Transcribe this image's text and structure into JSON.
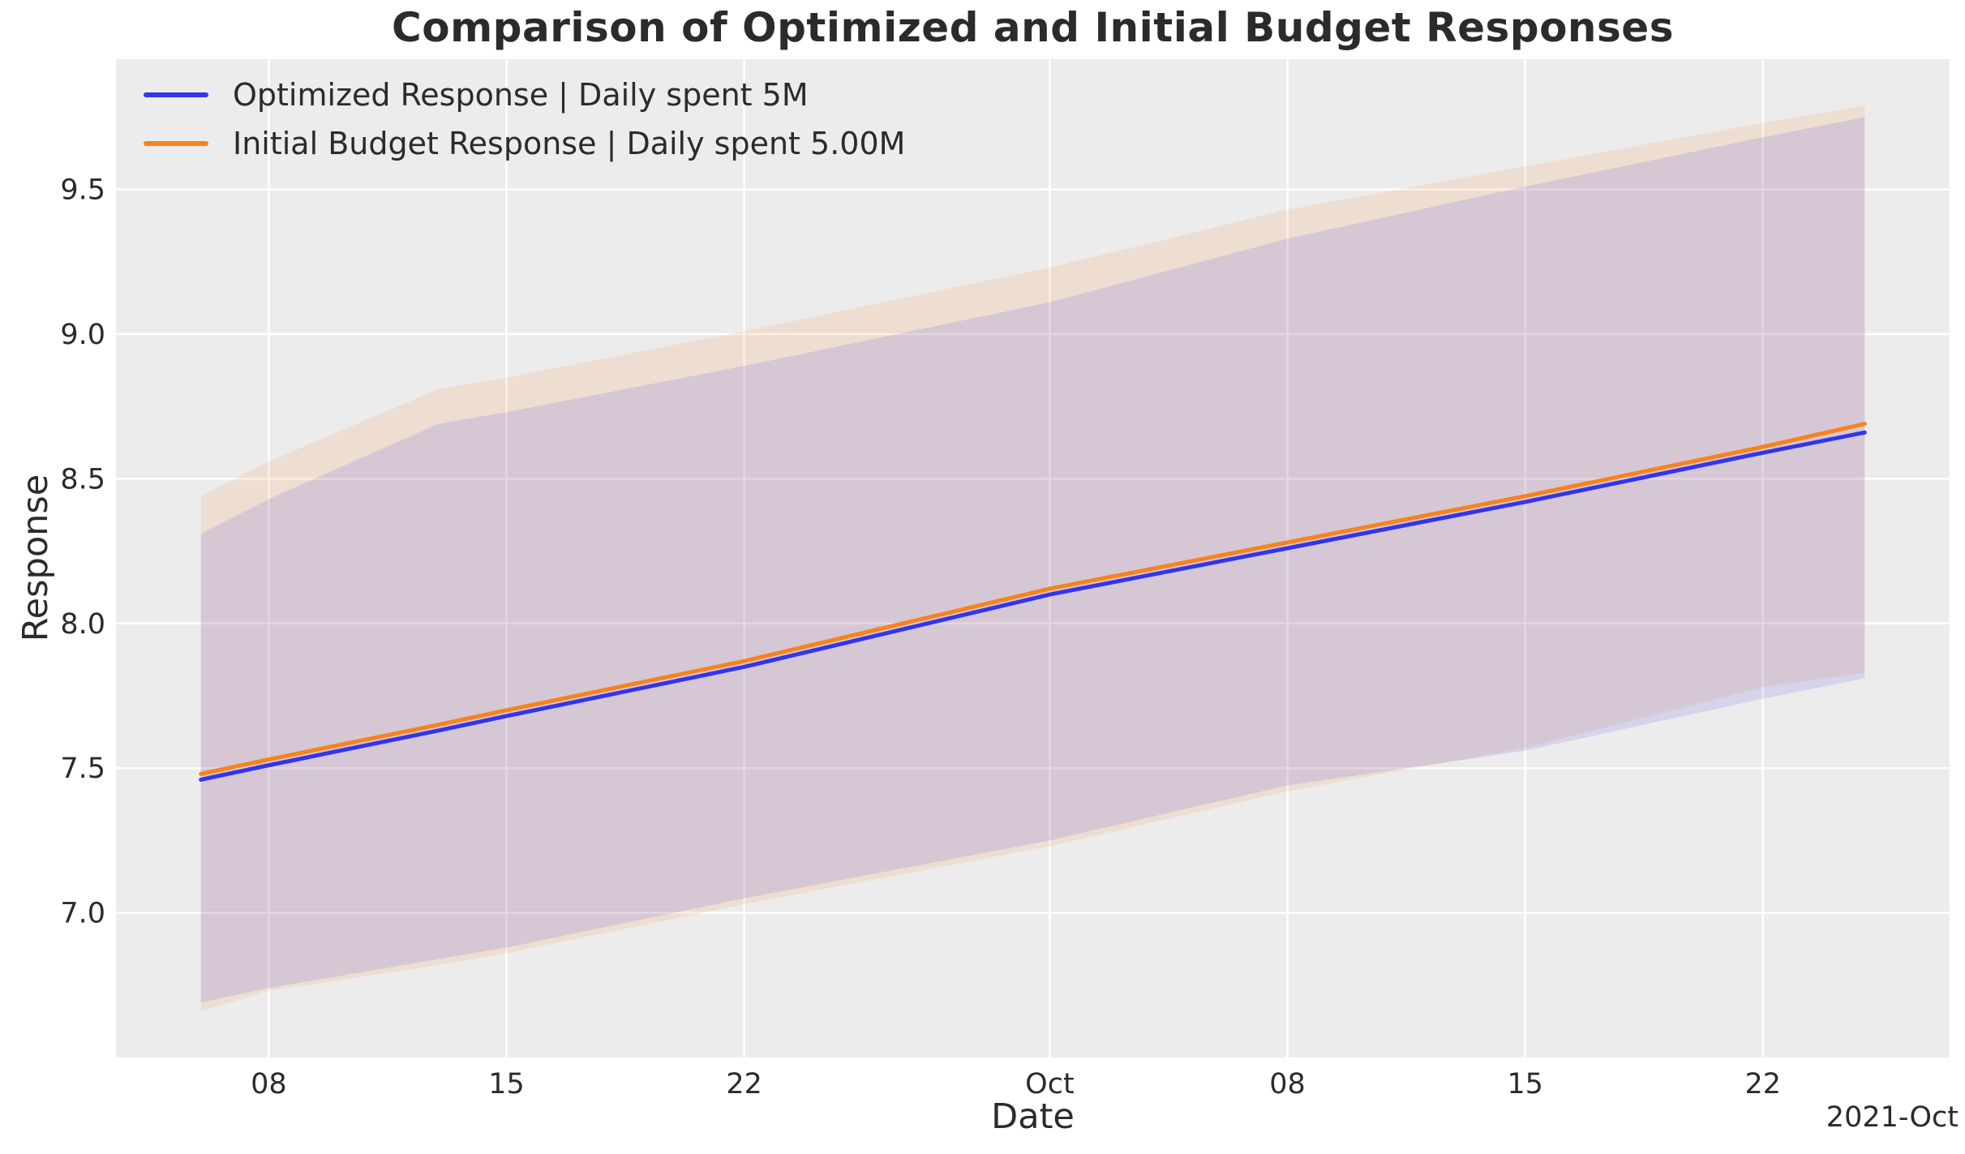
{
  "figure": {
    "title": "Comparison of Optimized and Initial Budget Responses",
    "xlabel": "Date",
    "ylabel": "Response",
    "x_offset_label": "2021-Oct"
  },
  "legend": {
    "position": "upper left",
    "items": [
      {
        "label": "Optimized Response | Daily spent 5M",
        "color": "#3434eb"
      },
      {
        "label": "Initial Budget Response | Daily spent 5.00M",
        "color": "#f8821c"
      }
    ]
  },
  "colors": {
    "figure_background": "#ffffff",
    "plot_background": "#ececec",
    "grid": "#ffffff",
    "text": "#2b2b2b",
    "optimized_line": "#3434eb",
    "initial_line": "#f8821c"
  },
  "chart_data": {
    "type": "line",
    "title": "Comparison of Optimized and Initial Budget Responses",
    "xlabel": "Date",
    "ylabel": "Response",
    "grid": true,
    "legend_position": "upper left",
    "x_dates": [
      "2021-09-06",
      "2021-09-08",
      "2021-09-13",
      "2021-09-15",
      "2021-09-22",
      "2021-10-01",
      "2021-10-08",
      "2021-10-15",
      "2021-10-22",
      "2021-10-25"
    ],
    "x_day_offsets": [
      0,
      2,
      7,
      9,
      16,
      25,
      32,
      39,
      46,
      49
    ],
    "x_domain": [
      -2.5,
      51.5
    ],
    "y_domain": [
      6.5,
      9.95
    ],
    "x_ticks": [
      {
        "pos": 2,
        "label": "08"
      },
      {
        "pos": 9,
        "label": "15"
      },
      {
        "pos": 16,
        "label": "22"
      },
      {
        "pos": 25,
        "label": "Oct"
      },
      {
        "pos": 32,
        "label": "08"
      },
      {
        "pos": 39,
        "label": "15"
      },
      {
        "pos": 46,
        "label": "22"
      }
    ],
    "y_ticks": [
      {
        "pos": 7.0,
        "label": "7.0"
      },
      {
        "pos": 7.5,
        "label": "7.5"
      },
      {
        "pos": 8.0,
        "label": "8.0"
      },
      {
        "pos": 8.5,
        "label": "8.5"
      },
      {
        "pos": 9.0,
        "label": "9.0"
      },
      {
        "pos": 9.5,
        "label": "9.5"
      }
    ],
    "series": [
      {
        "name": "Optimized Response | Daily spent 5M",
        "color": "#3434eb",
        "values": [
          7.46,
          7.51,
          7.63,
          7.68,
          7.85,
          8.1,
          8.26,
          8.42,
          8.59,
          8.66
        ],
        "band_lower": [
          6.69,
          6.74,
          6.84,
          6.88,
          7.05,
          7.25,
          7.44,
          7.56,
          7.74,
          7.81
        ],
        "band_upper": [
          8.31,
          8.43,
          8.69,
          8.73,
          8.89,
          9.11,
          9.33,
          9.51,
          9.68,
          9.75
        ]
      },
      {
        "name": "Initial Budget Response | Daily spent 5.00M",
        "color": "#f8821c",
        "values": [
          7.48,
          7.53,
          7.65,
          7.7,
          7.87,
          8.12,
          8.28,
          8.44,
          8.61,
          8.69
        ],
        "band_lower": [
          6.66,
          6.73,
          6.82,
          6.86,
          7.03,
          7.23,
          7.42,
          7.57,
          7.78,
          7.83
        ],
        "band_upper": [
          8.44,
          8.56,
          8.81,
          8.85,
          9.01,
          9.23,
          9.43,
          9.58,
          9.73,
          9.79
        ]
      }
    ]
  }
}
